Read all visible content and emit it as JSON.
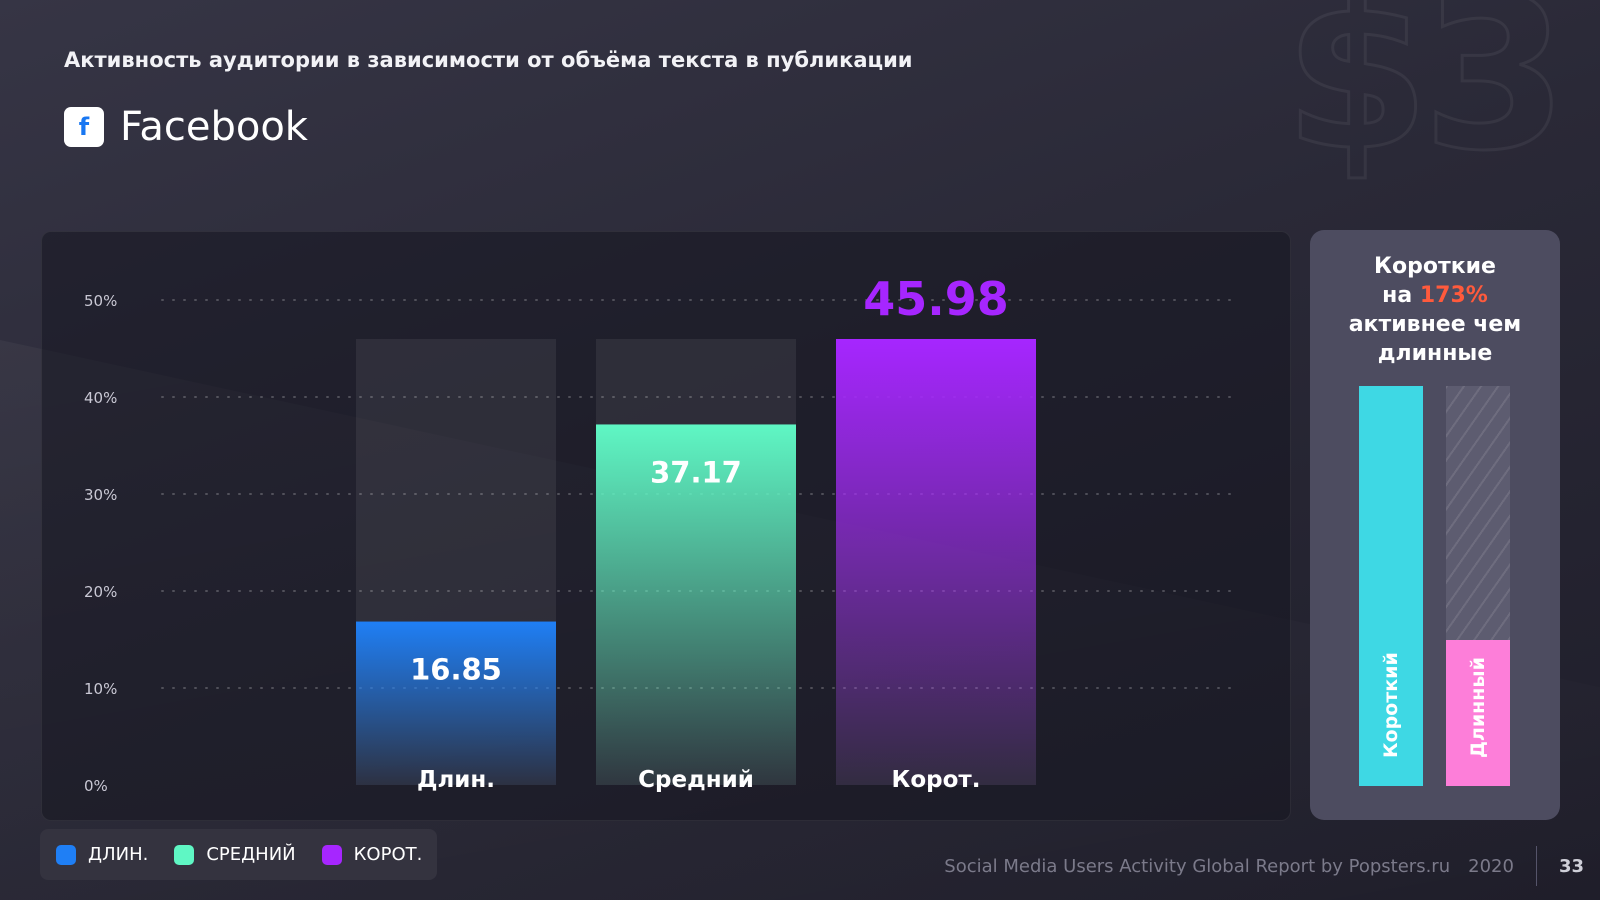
{
  "header": {
    "subtitle": "Активность аудитории в зависимости от объёма текста в публикации",
    "brand_name": "Facebook",
    "brand_icon": "facebook-icon",
    "watermark": "$3"
  },
  "chart_data": {
    "type": "bar",
    "categories": [
      "Длин.",
      "Средний",
      "Корот."
    ],
    "values": [
      16.85,
      37.17,
      45.98
    ],
    "value_labels": [
      "16.85",
      "37.17",
      "45.98"
    ],
    "colors": [
      "#1f7ff5",
      "#5ff7c4",
      "#a626ff"
    ],
    "y_ticks": [
      "0%",
      "10%",
      "20%",
      "30%",
      "40%",
      "50%"
    ],
    "ylim": [
      0,
      50
    ],
    "grid": true,
    "legend_position": "bottom-left"
  },
  "legend": [
    {
      "label": "ДЛИН.",
      "color": "#1f7ff5"
    },
    {
      "label": "СРЕДНИЙ",
      "color": "#5ff7c4"
    },
    {
      "label": "КОРОТ.",
      "color": "#a626ff"
    }
  ],
  "comparison": {
    "heading_line1": "Короткие",
    "heading_pre": "на ",
    "heading_highlight": "173%",
    "heading_line3": "активнее чем",
    "heading_line4": "длинные",
    "highlight_color": "#ff5a3c",
    "short_label": "Короткий",
    "long_label": "Длинный",
    "short_color": "#3ed8e4",
    "long_color": "#fd7ed9",
    "short_level": 1.0,
    "long_level": 0.366
  },
  "footer": {
    "report": "Social Media Users Activity Global Report by Popsters.ru",
    "year": "2020",
    "page": "33"
  }
}
